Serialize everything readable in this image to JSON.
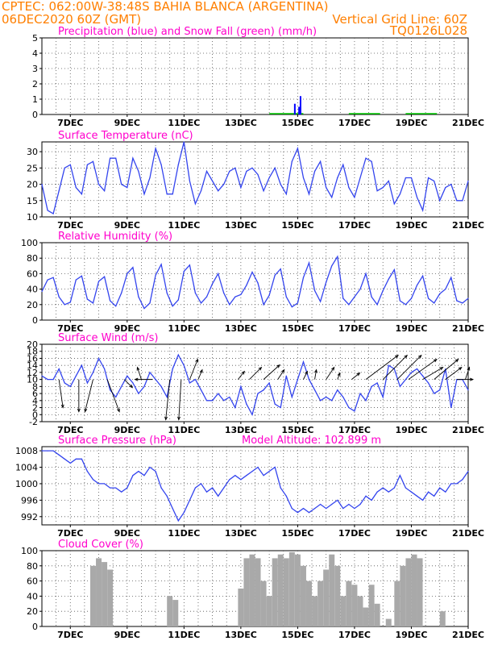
{
  "header": {
    "line1_left": "CPTEC:   062:00W-38:48S   BAHIA BLANCA (ARGENTINA)",
    "line2_left": "06DEC2020 60Z (GMT)",
    "line2_right": "Vertical Grid Line: 60Z",
    "line3_right": "TQ0126L028",
    "header_color": "#ff7f00",
    "title_color": "#ff00cc"
  },
  "x_axis": {
    "tick_labels": [
      "7DEC",
      "9DEC",
      "11DEC",
      "13DEC",
      "15DEC",
      "17DEC",
      "19DEC",
      "21DEC"
    ],
    "tick_days": [
      7,
      9,
      11,
      13,
      15,
      17,
      19,
      21
    ],
    "range_days": [
      6.0,
      21.0
    ],
    "vertical_grid_step_days": 0.5
  },
  "chart_data": [
    {
      "type": "bar",
      "title": "Precipitation (blue) and Snow Fall (green) (mm/h)",
      "ylim": [
        0,
        5
      ],
      "yticks": [
        0,
        1,
        2,
        3,
        4,
        5
      ],
      "series": [
        {
          "name": "Precipitation",
          "color": "#0000ff",
          "x": [
            14.9,
            15.05,
            15.1
          ],
          "values": [
            0.7,
            0.5,
            1.2
          ]
        }
      ],
      "snow_indications": [
        [
          14.0,
          15.2
        ],
        [
          16.8,
          17.9
        ],
        [
          18.8,
          19.9
        ]
      ],
      "snow_color": "#00cc00"
    },
    {
      "type": "line",
      "title": "Surface Temperature (nC)",
      "ylim": [
        10,
        33
      ],
      "yticks": [
        10,
        15,
        20,
        25,
        30
      ],
      "color": "#3344ee",
      "x": [
        6.0,
        6.2,
        6.4,
        6.6,
        6.8,
        7.0,
        7.2,
        7.4,
        7.6,
        7.8,
        8.0,
        8.2,
        8.4,
        8.6,
        8.8,
        9.0,
        9.2,
        9.4,
        9.6,
        9.8,
        10.0,
        10.2,
        10.4,
        10.6,
        10.8,
        11.0,
        11.2,
        11.4,
        11.6,
        11.8,
        12.0,
        12.2,
        12.4,
        12.6,
        12.8,
        13.0,
        13.2,
        13.4,
        13.6,
        13.8,
        14.0,
        14.2,
        14.4,
        14.6,
        14.8,
        15.0,
        15.2,
        15.4,
        15.6,
        15.8,
        16.0,
        16.2,
        16.4,
        16.6,
        16.8,
        17.0,
        17.2,
        17.4,
        17.6,
        17.8,
        18.0,
        18.2,
        18.4,
        18.6,
        18.8,
        19.0,
        19.2,
        19.4,
        19.6,
        19.8,
        20.0,
        20.2,
        20.4,
        20.6,
        20.8,
        21.0
      ],
      "values": [
        20,
        12,
        11,
        18,
        25,
        26,
        19,
        17,
        26,
        27,
        20,
        18,
        28,
        28,
        20,
        19,
        28,
        24,
        17,
        22,
        31,
        26,
        17,
        17,
        26,
        33,
        21,
        14,
        18,
        24,
        21,
        18,
        20,
        24,
        25,
        19,
        24,
        25,
        23,
        18,
        22,
        25,
        20,
        17,
        27,
        31,
        22,
        17,
        24,
        27,
        19,
        16,
        22,
        26,
        19,
        16,
        22,
        28,
        27,
        18,
        19,
        21,
        14,
        17,
        22,
        22,
        16,
        12,
        22,
        21,
        15,
        19,
        20,
        15,
        15,
        21
      ]
    },
    {
      "type": "line",
      "title": "Relative Humidity (%)",
      "ylim": [
        0,
        100
      ],
      "yticks": [
        0,
        20,
        40,
        60,
        80,
        100
      ],
      "color": "#3344ee",
      "x": [
        6.0,
        6.2,
        6.4,
        6.6,
        6.8,
        7.0,
        7.2,
        7.4,
        7.6,
        7.8,
        8.0,
        8.2,
        8.4,
        8.6,
        8.8,
        9.0,
        9.2,
        9.4,
        9.6,
        9.8,
        10.0,
        10.2,
        10.4,
        10.6,
        10.8,
        11.0,
        11.2,
        11.4,
        11.6,
        11.8,
        12.0,
        12.2,
        12.4,
        12.6,
        12.8,
        13.0,
        13.2,
        13.4,
        13.6,
        13.8,
        14.0,
        14.2,
        14.4,
        14.6,
        14.8,
        15.0,
        15.2,
        15.4,
        15.6,
        15.8,
        16.0,
        16.2,
        16.4,
        16.6,
        16.8,
        17.0,
        17.2,
        17.4,
        17.6,
        17.8,
        18.0,
        18.2,
        18.4,
        18.6,
        18.8,
        19.0,
        19.2,
        19.4,
        19.6,
        19.8,
        20.0,
        20.2,
        20.4,
        20.6,
        20.8,
        21.0
      ],
      "values": [
        37,
        52,
        55,
        30,
        20,
        23,
        52,
        57,
        27,
        22,
        50,
        56,
        25,
        18,
        35,
        60,
        68,
        30,
        15,
        22,
        58,
        72,
        35,
        18,
        26,
        63,
        71,
        35,
        22,
        30,
        47,
        60,
        35,
        20,
        30,
        33,
        45,
        62,
        48,
        20,
        32,
        58,
        66,
        30,
        17,
        22,
        55,
        74,
        38,
        24,
        49,
        70,
        82,
        28,
        20,
        30,
        40,
        60,
        30,
        20,
        38,
        53,
        65,
        25,
        20,
        28,
        45,
        57,
        28,
        22,
        34,
        40,
        55,
        25,
        22,
        28
      ]
    },
    {
      "type": "line",
      "title": "Surface Wind (m/s)",
      "ylim": [
        -2,
        20
      ],
      "yticks": [
        -2,
        0,
        2,
        4,
        6,
        8,
        10,
        12,
        14,
        16,
        18,
        20
      ],
      "color": "#3344ee",
      "x": [
        6.0,
        6.2,
        6.4,
        6.6,
        6.8,
        7.0,
        7.2,
        7.4,
        7.6,
        7.8,
        8.0,
        8.2,
        8.4,
        8.6,
        8.8,
        9.0,
        9.2,
        9.4,
        9.6,
        9.8,
        10.0,
        10.2,
        10.4,
        10.6,
        10.8,
        11.0,
        11.2,
        11.4,
        11.6,
        11.8,
        12.0,
        12.2,
        12.4,
        12.6,
        12.8,
        13.0,
        13.2,
        13.4,
        13.6,
        13.8,
        14.0,
        14.2,
        14.4,
        14.6,
        14.8,
        15.0,
        15.2,
        15.4,
        15.6,
        15.8,
        16.0,
        16.2,
        16.4,
        16.6,
        16.8,
        17.0,
        17.2,
        17.4,
        17.6,
        17.8,
        18.0,
        18.2,
        18.4,
        18.6,
        18.8,
        19.0,
        19.2,
        19.4,
        19.6,
        19.8,
        20.0,
        20.2,
        20.4,
        20.6,
        20.8,
        21.0
      ],
      "values": [
        11,
        10,
        10,
        13,
        9,
        8,
        11,
        14,
        9,
        12,
        16,
        13,
        7,
        5,
        8,
        11,
        9,
        6,
        8,
        12,
        10,
        8,
        5,
        13,
        17,
        14,
        9,
        10,
        7,
        4,
        4,
        6,
        4,
        5,
        2,
        8,
        3,
        0,
        6,
        7,
        9,
        3,
        2,
        11,
        5,
        10,
        15,
        10,
        7,
        4,
        5,
        4,
        7,
        5,
        2,
        1,
        6,
        4,
        8,
        9,
        5,
        14,
        13,
        8,
        10,
        12,
        13,
        11,
        9,
        6,
        7,
        13,
        2,
        10,
        10,
        7
      ],
      "arrows": [
        {
          "x": 6.6,
          "dx": 5,
          "dy": 35
        },
        {
          "x": 7.3,
          "dx": 0,
          "dy": 40
        },
        {
          "x": 7.8,
          "dx": -10,
          "dy": 40
        },
        {
          "x": 8.3,
          "dx": 15,
          "dy": 40
        },
        {
          "x": 8.9,
          "dx": 10,
          "dy": 10
        },
        {
          "x": 9.5,
          "dx": -5,
          "dy": -15
        },
        {
          "x": 9.9,
          "dx": -22,
          "dy": 0
        },
        {
          "x": 10.5,
          "dx": -5,
          "dy": 50
        },
        {
          "x": 10.9,
          "dx": -3,
          "dy": 50
        },
        {
          "x": 11.2,
          "dx": 10,
          "dy": -25
        },
        {
          "x": 11.5,
          "dx": 5,
          "dy": -12
        },
        {
          "x": 12.9,
          "dx": 8,
          "dy": -10
        },
        {
          "x": 13.3,
          "dx": 15,
          "dy": -15
        },
        {
          "x": 13.8,
          "dx": 20,
          "dy": -18
        },
        {
          "x": 14.3,
          "dx": 8,
          "dy": -12
        },
        {
          "x": 15.2,
          "dx": 5,
          "dy": -10
        },
        {
          "x": 15.6,
          "dx": 2,
          "dy": -12
        },
        {
          "x": 16.0,
          "dx": 10,
          "dy": -15
        },
        {
          "x": 16.4,
          "dx": 3,
          "dy": -8
        },
        {
          "x": 16.9,
          "dx": 10,
          "dy": -8
        },
        {
          "x": 17.4,
          "dx": 40,
          "dy": -30
        },
        {
          "x": 18.0,
          "dx": 30,
          "dy": -30
        },
        {
          "x": 18.5,
          "dx": 30,
          "dy": -30
        },
        {
          "x": 18.9,
          "dx": 35,
          "dy": -25
        },
        {
          "x": 19.4,
          "dx": 25,
          "dy": -15
        },
        {
          "x": 19.8,
          "dx": 30,
          "dy": -25
        },
        {
          "x": 20.2,
          "dx": 20,
          "dy": -15
        },
        {
          "x": 20.6,
          "dx": 20,
          "dy": 0
        },
        {
          "x": 20.9,
          "dx": 5,
          "dy": -15
        }
      ]
    },
    {
      "type": "line",
      "title": "Surface Pressure (hPa)",
      "subtitle": "Model Altitude: 102.899  m",
      "ylim": [
        990,
        1009
      ],
      "yticks": [
        992,
        996,
        1000,
        1004,
        1008
      ],
      "color": "#3344ee",
      "x": [
        6.0,
        6.2,
        6.4,
        6.6,
        6.8,
        7.0,
        7.2,
        7.4,
        7.6,
        7.8,
        8.0,
        8.2,
        8.4,
        8.6,
        8.8,
        9.0,
        9.2,
        9.4,
        9.6,
        9.8,
        10.0,
        10.2,
        10.4,
        10.6,
        10.8,
        11.0,
        11.2,
        11.4,
        11.6,
        11.8,
        12.0,
        12.2,
        12.4,
        12.6,
        12.8,
        13.0,
        13.2,
        13.4,
        13.6,
        13.8,
        14.0,
        14.2,
        14.4,
        14.6,
        14.8,
        15.0,
        15.2,
        15.4,
        15.6,
        15.8,
        16.0,
        16.2,
        16.4,
        16.6,
        16.8,
        17.0,
        17.2,
        17.4,
        17.6,
        17.8,
        18.0,
        18.2,
        18.4,
        18.6,
        18.8,
        19.0,
        19.2,
        19.4,
        19.6,
        19.8,
        20.0,
        20.2,
        20.4,
        20.6,
        20.8,
        21.0
      ],
      "values": [
        1008,
        1008,
        1008,
        1007,
        1006,
        1005,
        1006,
        1006,
        1003,
        1001,
        1000,
        1000,
        999,
        999,
        998,
        999,
        1002,
        1003,
        1002,
        1004,
        1003,
        999,
        997,
        994,
        991,
        993,
        996,
        999,
        1000,
        998,
        999,
        997,
        999,
        1001,
        1002,
        1001,
        1002,
        1003,
        1004,
        1002,
        1003,
        1004,
        999,
        997,
        994,
        993,
        994,
        993,
        994,
        995,
        994,
        995,
        996,
        994,
        995,
        994,
        995,
        997,
        996,
        998,
        999,
        998,
        999,
        1002,
        999,
        998,
        997,
        996,
        998,
        997,
        999,
        998,
        1000,
        1000,
        1001,
        1003
      ]
    },
    {
      "type": "bar",
      "title": "Cloud Cover (%)",
      "ylim": [
        0,
        100
      ],
      "yticks": [
        0,
        20,
        40,
        60,
        80,
        100
      ],
      "color": "#a9a9a9",
      "x": [
        7.8,
        8.0,
        8.2,
        8.4,
        10.5,
        10.7,
        13.0,
        13.2,
        13.4,
        13.6,
        13.8,
        14.0,
        14.2,
        14.4,
        14.6,
        14.8,
        15.0,
        15.2,
        15.4,
        15.6,
        15.8,
        16.0,
        16.2,
        16.4,
        16.6,
        16.8,
        17.0,
        17.2,
        17.4,
        17.6,
        17.8,
        18.2,
        18.5,
        18.7,
        18.9,
        19.1,
        19.3,
        20.1
      ],
      "values": [
        80,
        90,
        85,
        75,
        40,
        35,
        50,
        90,
        95,
        90,
        60,
        40,
        90,
        95,
        90,
        98,
        95,
        80,
        60,
        40,
        60,
        75,
        95,
        80,
        40,
        60,
        55,
        40,
        25,
        55,
        30,
        10,
        60,
        80,
        90,
        95,
        90,
        20
      ]
    }
  ]
}
